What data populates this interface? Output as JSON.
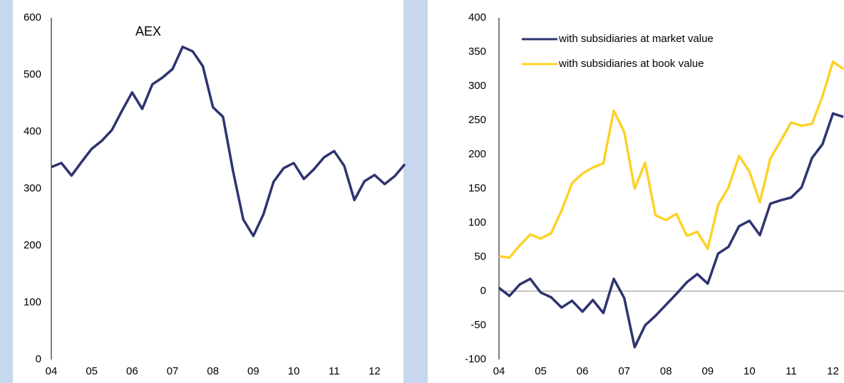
{
  "chart_data": [
    {
      "type": "line",
      "title": "AEX",
      "categories": [
        "04",
        null,
        null,
        null,
        "05",
        null,
        null,
        null,
        "06",
        null,
        null,
        null,
        "07",
        null,
        null,
        null,
        "08",
        null,
        null,
        null,
        "09",
        null,
        null,
        null,
        "10",
        null,
        null,
        null,
        "11",
        null,
        null,
        null,
        "12",
        null,
        null,
        null
      ],
      "values": [
        338,
        345,
        323,
        347,
        370,
        384,
        403,
        437,
        469,
        440,
        483,
        495,
        510,
        549,
        541,
        515,
        443,
        426,
        330,
        246,
        217,
        255,
        312,
        336,
        345,
        317,
        334,
        355,
        366,
        340,
        280,
        313,
        324,
        308,
        322,
        343
      ],
      "color": "#2e3470",
      "ylim": [
        0,
        600
      ],
      "yticks": [
        0,
        100,
        200,
        300,
        400,
        500,
        600
      ]
    },
    {
      "type": "line",
      "categories": [
        "04",
        null,
        null,
        null,
        "05",
        null,
        null,
        null,
        "06",
        null,
        null,
        null,
        "07",
        null,
        null,
        null,
        "08",
        null,
        null,
        null,
        "09",
        null,
        null,
        null,
        "10",
        null,
        null,
        null,
        "11",
        null,
        null,
        null,
        "12",
        null
      ],
      "series": [
        {
          "name": "with subsidiaries at market value",
          "color": "#2e3470",
          "values": [
            5,
            -7,
            10,
            18,
            -2,
            -9,
            -24,
            -14,
            -30,
            -13,
            -32,
            18,
            -10,
            -82,
            -50,
            -36,
            -20,
            -4,
            13,
            25,
            11,
            55,
            65,
            95,
            103,
            82,
            128,
            133,
            137,
            152,
            195,
            215,
            260,
            255
          ]
        },
        {
          "name": "with subsidiaries at book value",
          "color": "#fcd22a",
          "values": [
            51,
            49,
            67,
            83,
            77,
            85,
            118,
            158,
            172,
            181,
            187,
            264,
            233,
            150,
            188,
            111,
            104,
            113,
            81,
            87,
            62,
            126,
            152,
            198,
            175,
            130,
            194,
            220,
            247,
            242,
            245,
            285,
            336,
            325
          ]
        }
      ],
      "ylim": [
        -100,
        400
      ],
      "yticks": [
        -100,
        -50,
        0,
        50,
        100,
        150,
        200,
        250,
        300,
        350,
        400
      ],
      "zero_line": true,
      "legend": "top-left"
    }
  ]
}
